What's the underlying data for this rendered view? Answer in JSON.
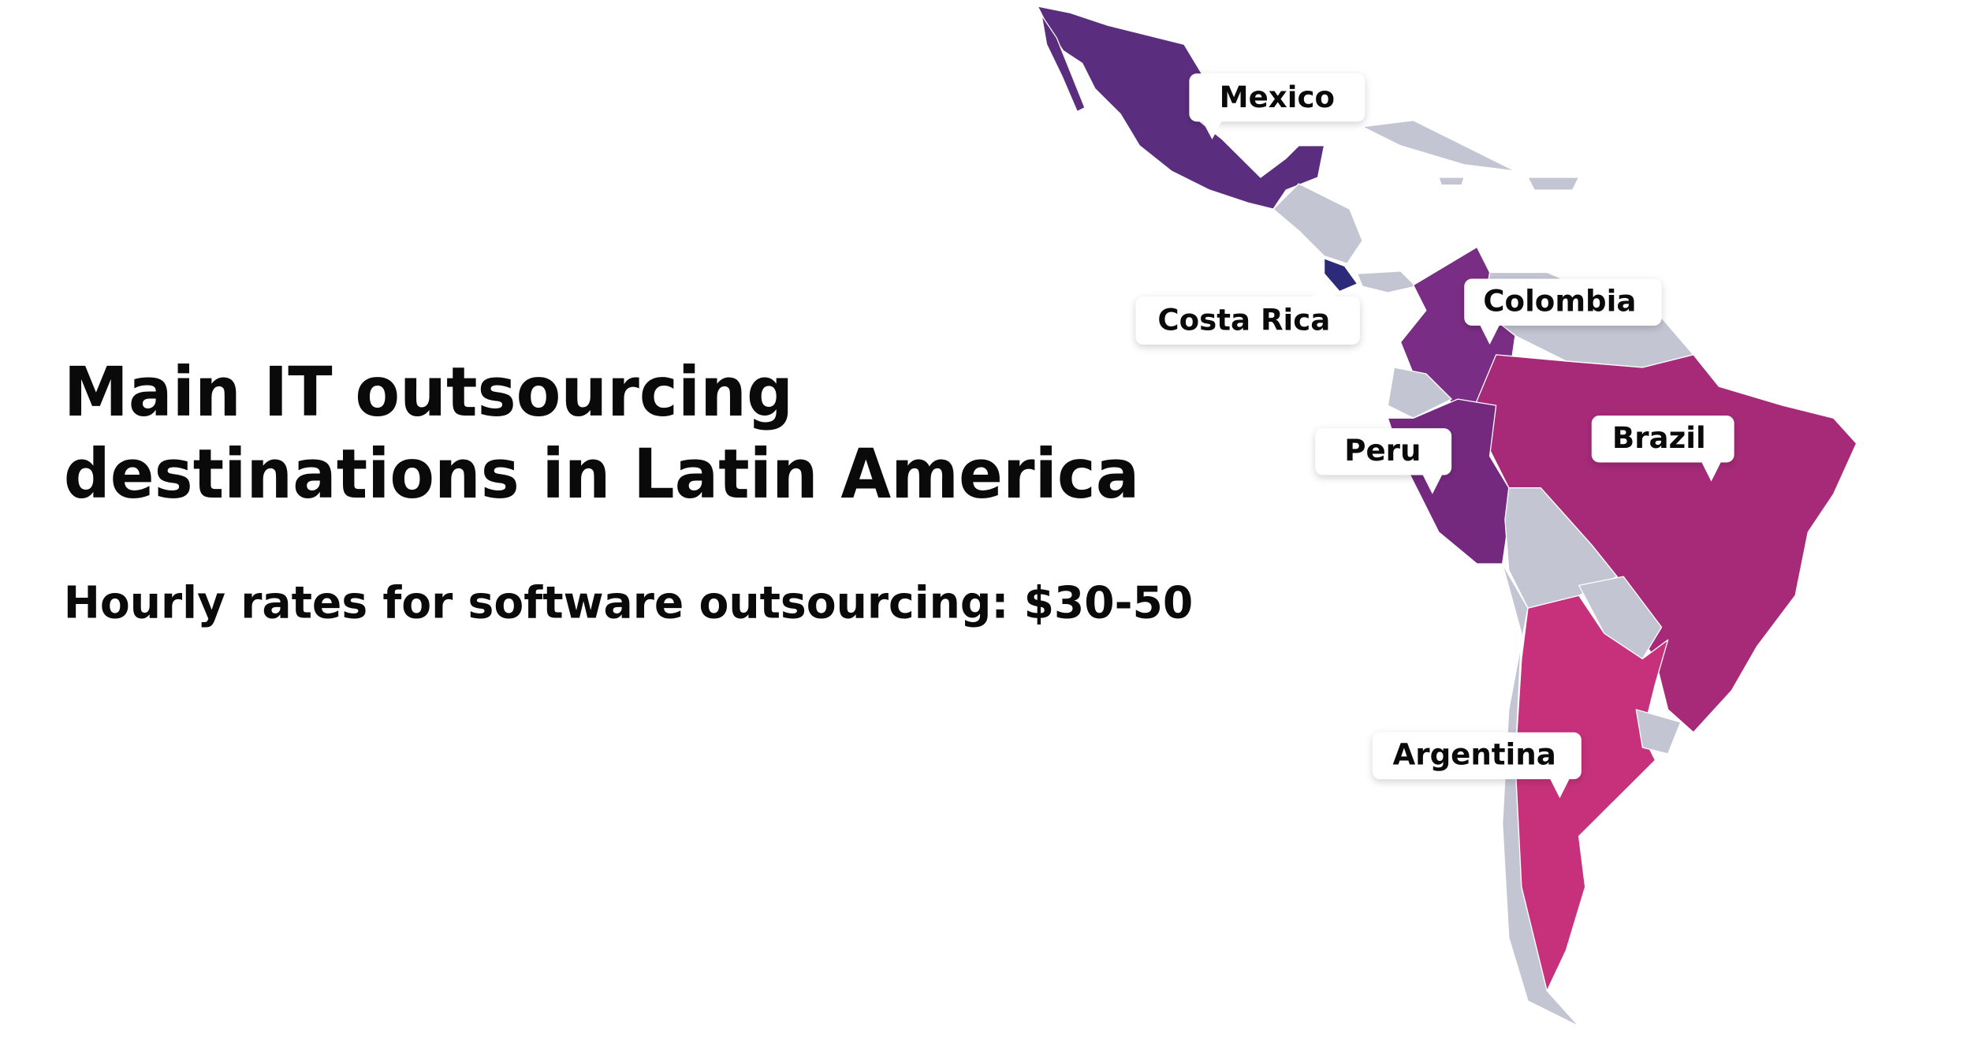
{
  "title": [
    "Main IT outsourcing",
    "destinations in Latin America"
  ],
  "subtitle": "Hourly rates for software outsourcing: $30-50",
  "labels": [
    "Mexico",
    "Costa Rica",
    "Colombia",
    "Peru",
    "Brazil",
    "Argentina"
  ]
}
